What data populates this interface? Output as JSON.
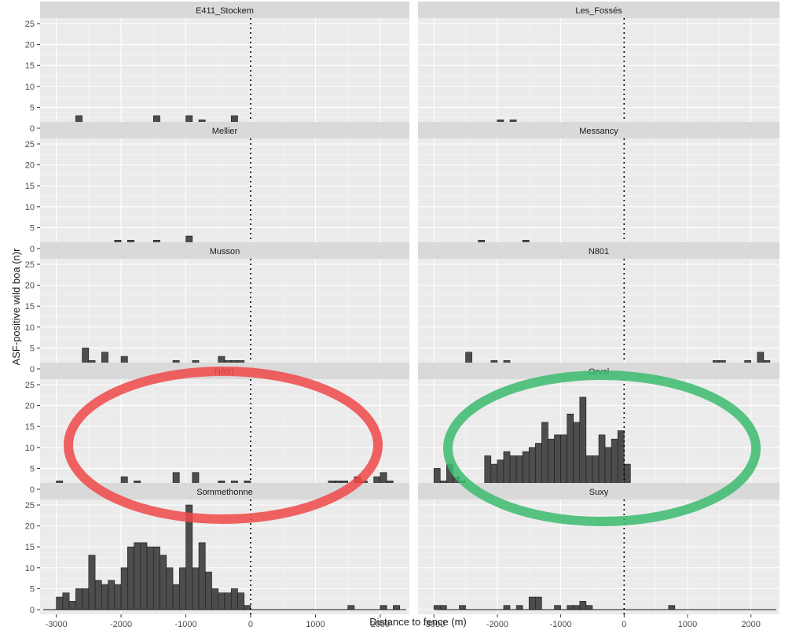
{
  "chart_data": {
    "type": "bar",
    "subtype": "faceted-histogram",
    "xlabel": "Distance to fence (m)",
    "ylabel": "ASF-positive wild boa (n)r",
    "xlim": [
      -3250,
      2450
    ],
    "ylim": [
      0,
      27
    ],
    "bin_width": 100,
    "x_ticks": [
      -3000,
      -2000,
      -1000,
      0,
      1000,
      2000
    ],
    "x_tick_labels": [
      "-3000",
      "-2000",
      "-1000",
      "0",
      "1000",
      "2000"
    ],
    "y_ticks": [
      0,
      5,
      10,
      15,
      20,
      25
    ],
    "y_tick_labels": [
      "0",
      "5",
      "10",
      "15",
      "20",
      "25"
    ],
    "vline_x": 0,
    "vline_style": "dotted",
    "grid": true,
    "facet_layout": {
      "rows": 5,
      "cols": 2
    },
    "colors": {
      "bar_fill": "#4d4d4d",
      "bar_stroke": "#1a1a1a",
      "panel_bg": "#ebebeb",
      "strip_bg": "#d9d9d9",
      "grid_major": "#ffffff",
      "grid_minor": "#f5f5f5",
      "red_ellipse": "#f04848",
      "green_ellipse": "#3cbb6e"
    },
    "facets": [
      {
        "name": "E411_Stockem",
        "x_range": [
          -3100,
          0
        ],
        "bins": [
          [
            -2750,
            1
          ],
          [
            -2650,
            3
          ],
          [
            -2450,
            1
          ],
          [
            -2250,
            1
          ],
          [
            -2150,
            1
          ],
          [
            -1550,
            1
          ],
          [
            -1450,
            3
          ],
          [
            -1050,
            1
          ],
          [
            -950,
            3
          ],
          [
            -750,
            2
          ],
          [
            -450,
            1
          ],
          [
            -250,
            3
          ]
        ]
      },
      {
        "name": "Les_Fossés",
        "x_range": [
          -2950,
          2350
        ],
        "bins": [
          [
            -2450,
            1
          ],
          [
            -2350,
            1
          ],
          [
            -1950,
            2
          ],
          [
            -1750,
            2
          ]
        ]
      },
      {
        "name": "Mellier",
        "x_range": [
          -3200,
          0
        ],
        "bins": [
          [
            -2950,
            1
          ],
          [
            -2750,
            1
          ],
          [
            -2050,
            2
          ],
          [
            -1850,
            2
          ],
          [
            -1550,
            1
          ],
          [
            -1450,
            2
          ],
          [
            -950,
            3
          ]
        ]
      },
      {
        "name": "Messancy",
        "x_range": [
          -2950,
          2400
        ],
        "bins": [
          [
            -2650,
            1
          ],
          [
            -2250,
            2
          ],
          [
            -2150,
            1
          ],
          [
            -1950,
            1
          ],
          [
            -1850,
            1
          ],
          [
            -1750,
            1
          ],
          [
            -1550,
            2
          ],
          [
            -1050,
            1
          ],
          [
            -250,
            1
          ]
        ]
      },
      {
        "name": "Musson",
        "x_range": [
          -3200,
          0
        ],
        "bins": [
          [
            -2950,
            1
          ],
          [
            -2850,
            1
          ],
          [
            -2750,
            1
          ],
          [
            -2650,
            1
          ],
          [
            -2550,
            5
          ],
          [
            -2450,
            2
          ],
          [
            -2350,
            1
          ],
          [
            -2250,
            4
          ],
          [
            -2050,
            1
          ],
          [
            -1950,
            3
          ],
          [
            -1150,
            2
          ],
          [
            -850,
            2
          ],
          [
            -750,
            1
          ],
          [
            -450,
            3
          ],
          [
            -350,
            2
          ],
          [
            -250,
            2
          ],
          [
            -150,
            2
          ]
        ]
      },
      {
        "name": "N801",
        "x_range": [
          -2950,
          2400
        ],
        "bins": [
          [
            -2850,
            1
          ],
          [
            -2450,
            4
          ],
          [
            -2150,
            1
          ],
          [
            -2050,
            2
          ],
          [
            -1950,
            1
          ],
          [
            -1850,
            2
          ],
          [
            -1750,
            1
          ],
          [
            -1650,
            1
          ],
          [
            -1550,
            1
          ],
          [
            -1450,
            1
          ],
          [
            -1350,
            1
          ],
          [
            -1150,
            1
          ],
          [
            -950,
            1
          ],
          [
            -450,
            1
          ],
          [
            -150,
            1
          ],
          [
            -50,
            1
          ],
          [
            450,
            1
          ],
          [
            950,
            1
          ],
          [
            1450,
            2
          ],
          [
            1550,
            2
          ],
          [
            1650,
            1
          ],
          [
            1750,
            1
          ],
          [
            1850,
            1
          ],
          [
            1950,
            2
          ],
          [
            2150,
            4
          ],
          [
            2250,
            2
          ]
        ]
      },
      {
        "name": "N891",
        "x_range": [
          -3200,
          2350
        ],
        "bins": [
          [
            -3150,
            1
          ],
          [
            -2950,
            2
          ],
          [
            -2850,
            1
          ],
          [
            -2650,
            1
          ],
          [
            -2150,
            1
          ],
          [
            -1950,
            3
          ],
          [
            -1750,
            2
          ],
          [
            -1650,
            1
          ],
          [
            -1550,
            1
          ],
          [
            -1450,
            1
          ],
          [
            -1250,
            1
          ],
          [
            -1150,
            4
          ],
          [
            -950,
            1
          ],
          [
            -850,
            4
          ],
          [
            -450,
            2
          ],
          [
            -350,
            1
          ],
          [
            -250,
            2
          ],
          [
            -50,
            2
          ],
          [
            350,
            1
          ],
          [
            1250,
            2
          ],
          [
            1350,
            2
          ],
          [
            1450,
            2
          ],
          [
            1550,
            1
          ],
          [
            1650,
            3
          ],
          [
            1750,
            2
          ],
          [
            1850,
            1
          ],
          [
            1950,
            3
          ],
          [
            2050,
            4
          ],
          [
            2150,
            2
          ]
        ]
      },
      {
        "name": "Orval",
        "x_range": [
          -2950,
          2400
        ],
        "bins": [
          [
            -2950,
            5
          ],
          [
            -2850,
            2
          ],
          [
            -2750,
            6
          ],
          [
            -2650,
            3
          ],
          [
            -2550,
            2
          ],
          [
            -2450,
            1
          ],
          [
            -2350,
            1
          ],
          [
            -2250,
            1
          ],
          [
            -2150,
            8
          ],
          [
            -2050,
            6
          ],
          [
            -1950,
            7
          ],
          [
            -1850,
            9
          ],
          [
            -1750,
            8
          ],
          [
            -1650,
            8
          ],
          [
            -1550,
            9
          ],
          [
            -1450,
            10
          ],
          [
            -1350,
            11
          ],
          [
            -1250,
            16
          ],
          [
            -1150,
            12
          ],
          [
            -1050,
            13
          ],
          [
            -950,
            13
          ],
          [
            -850,
            18
          ],
          [
            -750,
            16
          ],
          [
            -650,
            22
          ],
          [
            -550,
            8
          ],
          [
            -450,
            8
          ],
          [
            -350,
            13
          ],
          [
            -250,
            10
          ],
          [
            -150,
            12
          ],
          [
            -50,
            14
          ],
          [
            50,
            6
          ]
        ]
      },
      {
        "name": "Sommethonne",
        "x_range": [
          -3200,
          2400
        ],
        "bins": [
          [
            -2950,
            3
          ],
          [
            -2850,
            4
          ],
          [
            -2750,
            2
          ],
          [
            -2650,
            5
          ],
          [
            -2550,
            5
          ],
          [
            -2450,
            13
          ],
          [
            -2350,
            7
          ],
          [
            -2250,
            6
          ],
          [
            -2150,
            7
          ],
          [
            -2050,
            6
          ],
          [
            -1950,
            10
          ],
          [
            -1850,
            15
          ],
          [
            -1750,
            16
          ],
          [
            -1650,
            16
          ],
          [
            -1550,
            15
          ],
          [
            -1450,
            15
          ],
          [
            -1350,
            13
          ],
          [
            -1250,
            10
          ],
          [
            -1150,
            6
          ],
          [
            -1050,
            10
          ],
          [
            -950,
            25
          ],
          [
            -850,
            10
          ],
          [
            -750,
            16
          ],
          [
            -650,
            9
          ],
          [
            -550,
            5
          ],
          [
            -450,
            4
          ],
          [
            -350,
            4
          ],
          [
            -250,
            5
          ],
          [
            -150,
            4
          ],
          [
            -50,
            1
          ],
          [
            1550,
            1
          ],
          [
            2050,
            1
          ],
          [
            2250,
            1
          ]
        ]
      },
      {
        "name": "Suxy",
        "x_range": [
          -2950,
          2400
        ],
        "bins": [
          [
            -2950,
            1
          ],
          [
            -2850,
            1
          ],
          [
            -2550,
            1
          ],
          [
            -1850,
            1
          ],
          [
            -1650,
            1
          ],
          [
            -1450,
            3
          ],
          [
            -1350,
            3
          ],
          [
            -1050,
            1
          ],
          [
            -850,
            1
          ],
          [
            -750,
            1
          ],
          [
            -650,
            2
          ],
          [
            -550,
            1
          ],
          [
            750,
            1
          ]
        ]
      }
    ]
  }
}
